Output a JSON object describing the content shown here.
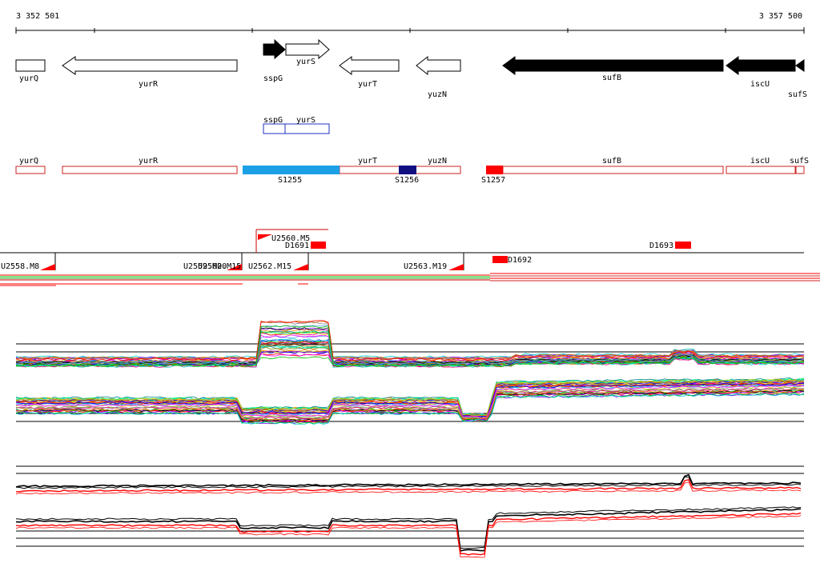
{
  "ruler": {
    "start_label": "3 352 501",
    "end_label": "3 357 500"
  },
  "genes": [
    {
      "name": "yurQ",
      "strand": "+",
      "filled": false
    },
    {
      "name": "yurR",
      "strand": "-",
      "filled": false
    },
    {
      "name": "sspG",
      "strand": "+",
      "filled": true
    },
    {
      "name": "yurS",
      "strand": "+",
      "filled": false
    },
    {
      "name": "yurT",
      "strand": "-",
      "filled": false
    },
    {
      "name": "yuzN",
      "strand": "-",
      "filled": false
    },
    {
      "name": "sufB",
      "strand": "-",
      "filled": true
    },
    {
      "name": "iscU",
      "strand": "-",
      "filled": true
    },
    {
      "name": "sufS",
      "strand": "-",
      "filled": true
    }
  ],
  "operon_labels": {
    "sspG": "sspG",
    "yurS": "yurS"
  },
  "track_genes": [
    "yurQ",
    "yurR",
    "yurT",
    "yuzN",
    "sufB",
    "iscU",
    "sufS"
  ],
  "segments": [
    {
      "label": "S1255",
      "color": "#1ba0e6"
    },
    {
      "label": "S1256",
      "color": "#101080"
    },
    {
      "label": "S1257",
      "color": "#ff0000"
    }
  ],
  "upshifts": [
    "U2558.M8",
    "U2559.M20",
    "U2560.M15",
    "U2560.M5",
    "U2562.M15",
    "U2563.M19"
  ],
  "downshifts": [
    "D1691",
    "D1692",
    "D1693"
  ],
  "colors": {
    "feature": "#ff0000",
    "gene_outline": "#cc2222",
    "operon": "#2030c0"
  }
}
